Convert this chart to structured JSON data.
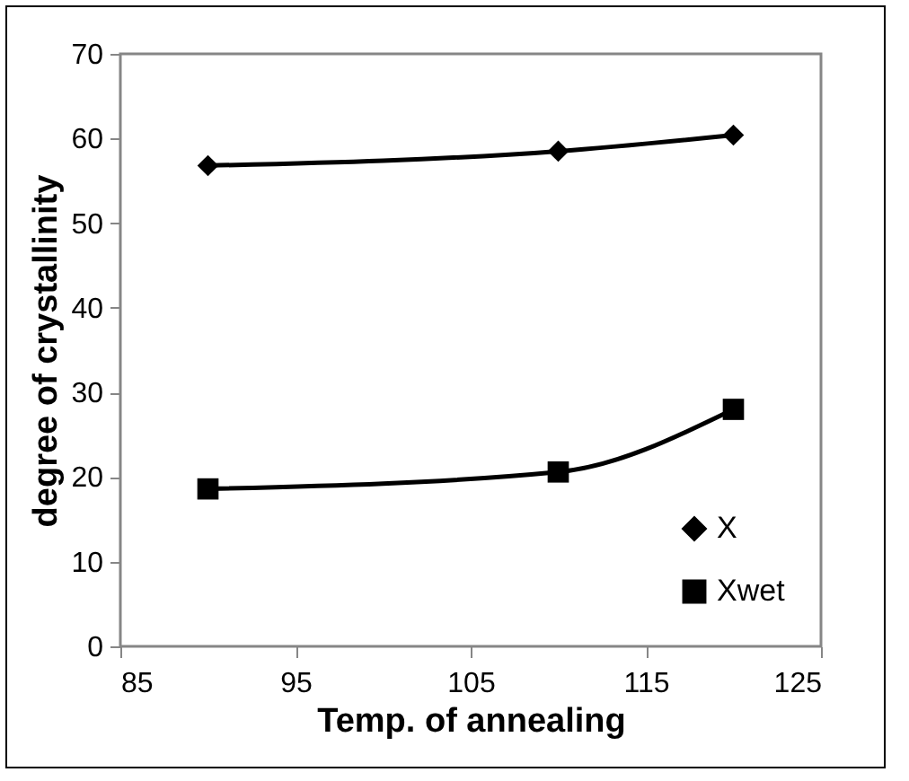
{
  "chart_data": {
    "type": "line",
    "xlabel": "Temp. of annealing",
    "ylabel": "degree of crystallinity",
    "x": [
      90,
      110,
      120
    ],
    "series": [
      {
        "name": "X",
        "color": "#000000",
        "marker": "diamond",
        "values": [
          56.8,
          58.5,
          60.4
        ]
      },
      {
        "name": "Xwet",
        "color": "#000000",
        "marker": "square",
        "values": [
          18.6,
          20.6,
          28.0
        ]
      }
    ],
    "xlim": [
      85,
      125
    ],
    "xticks": [
      85,
      95,
      105,
      115,
      125
    ],
    "ylim": [
      0,
      70
    ],
    "yticks": [
      0,
      10,
      20,
      30,
      40,
      50,
      60,
      70
    ],
    "grid": false,
    "legend": "bottom right",
    "line_style": "solid"
  }
}
